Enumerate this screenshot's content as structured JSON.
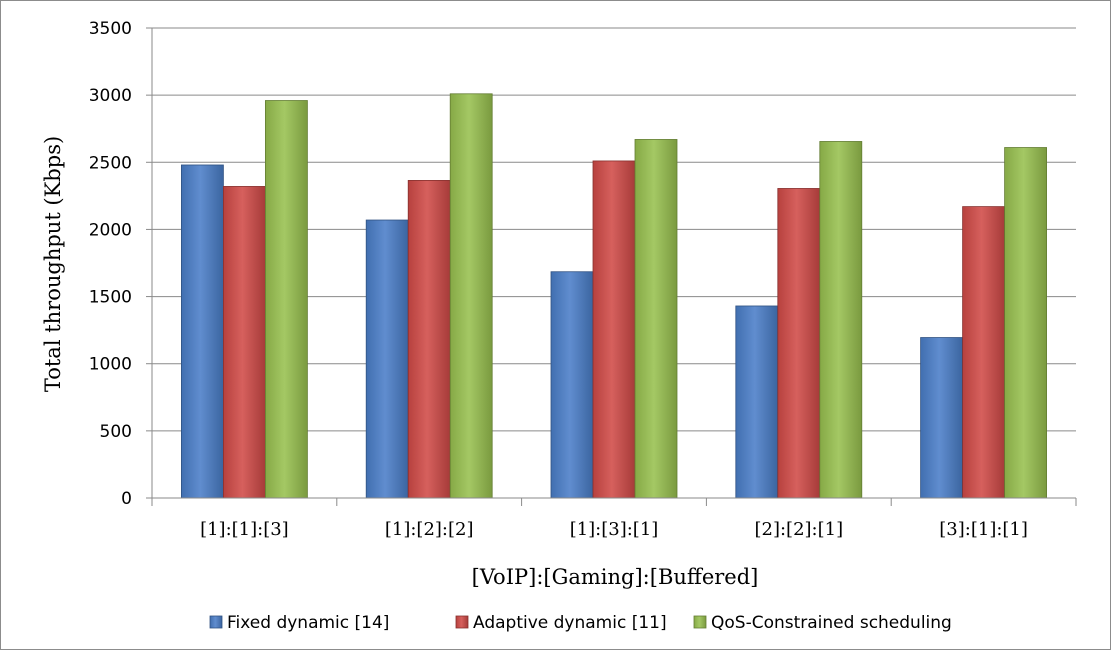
{
  "chart_data": {
    "type": "bar",
    "title": "",
    "xlabel": "[VoIP]:[Gaming]:[Buffered]",
    "ylabel": "Total throughput (Kbps)",
    "ylim": [
      0,
      3500
    ],
    "yticks": [
      0,
      500,
      1000,
      1500,
      2000,
      2500,
      3000,
      3500
    ],
    "grid": "horizontal",
    "legend": "bottom",
    "categories": [
      "[1]:[1]:[3]",
      "[1]:[2]:[2]",
      "[1]:[3]:[1]",
      "[2]:[2]:[1]",
      "[3]:[1]:[1]"
    ],
    "series": [
      {
        "name": "Fixed dynamic [14]",
        "color": "#4a7ec8",
        "values": [
          2480,
          2070,
          1685,
          1430,
          1195
        ]
      },
      {
        "name": "Adaptive dynamic [11]",
        "color": "#d04a47",
        "values": [
          2320,
          2365,
          2510,
          2305,
          2170
        ]
      },
      {
        "name": "QoS-Constrained scheduling",
        "color": "#98c04f",
        "values": [
          2960,
          3010,
          2670,
          2655,
          2610
        ]
      }
    ]
  }
}
